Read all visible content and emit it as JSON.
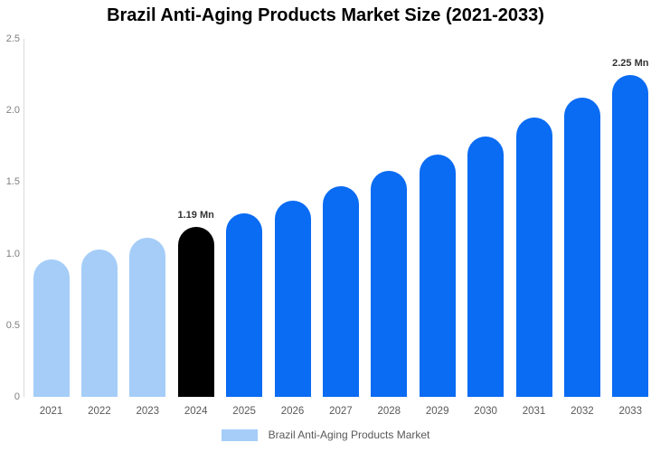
{
  "title": "Brazil Anti-Aging Products Market Size (2021-2033)",
  "chart_data": {
    "type": "bar",
    "title": "Brazil Anti-Aging Products Market Size (2021-2033)",
    "unit": "Mn",
    "categories": [
      "2021",
      "2022",
      "2023",
      "2024",
      "2025",
      "2026",
      "2027",
      "2028",
      "2029",
      "2030",
      "2031",
      "2032",
      "2033"
    ],
    "values": [
      0.96,
      1.03,
      1.11,
      1.19,
      1.28,
      1.37,
      1.47,
      1.58,
      1.69,
      1.82,
      1.95,
      2.09,
      2.25
    ],
    "bar_colors": [
      "#a5cdf8",
      "#a5cdf8",
      "#a5cdf8",
      "#000000",
      "#0a6bf3",
      "#0a6bf3",
      "#0a6bf3",
      "#0a6bf3",
      "#0a6bf3",
      "#0a6bf3",
      "#0a6bf3",
      "#0a6bf3",
      "#0a6bf3"
    ],
    "data_labels": [
      {
        "category": "2024",
        "text": "1.19 Mn"
      },
      {
        "category": "2033",
        "text": "2.25 Mn"
      }
    ],
    "xlabel": "",
    "ylabel": "",
    "ylim": [
      0,
      2.5
    ],
    "ytick_values": [
      0,
      0.5,
      1.0,
      1.5,
      2.0,
      2.5
    ],
    "ytick_labels": [
      "0",
      "0.5",
      "1.0",
      "1.5",
      "2.0",
      "2.5"
    ],
    "grid": false,
    "legend_position": "bottom",
    "legend": [
      {
        "label": "Brazil Anti-Aging Products Market",
        "swatch_color": "#a5cdf8"
      }
    ]
  },
  "colors": {
    "historical_bar": "#a5cdf8",
    "base_year_bar": "#000000",
    "forecast_bar": "#0a6bf3",
    "axis_line": "#d9d9d9",
    "ytick_text": "#7f7f7f",
    "xtick_text": "#595959",
    "data_label_text": "#333333"
  }
}
